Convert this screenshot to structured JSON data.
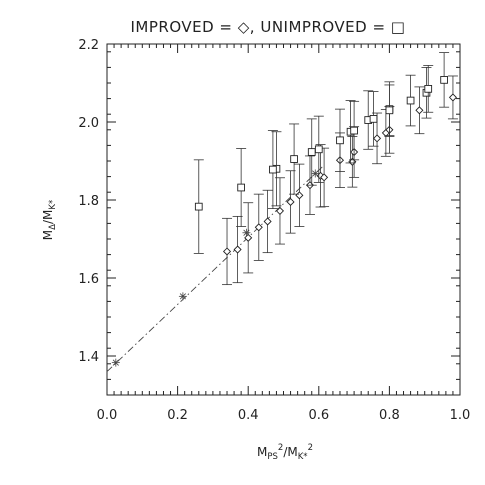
{
  "chart_data": {
    "type": "scatter",
    "title": "IMPROVED = ◇, UNIMPROVED = □",
    "xlabel": {
      "main": "M",
      "sub1": "PS",
      "sup1": "2",
      "slash": "/M",
      "sub2": "K*",
      "sup2": "2"
    },
    "ylabel": {
      "main": "M",
      "sub1": "Δ",
      "slash": "/M",
      "sub2": "K*"
    },
    "xlim": [
      0.0,
      1.0
    ],
    "ylim": [
      1.3,
      2.2
    ],
    "x_ticks": [
      "0.0",
      "0.2",
      "0.4",
      "0.6",
      "0.8",
      "1.0"
    ],
    "y_ticks": [
      "1.4",
      "1.6",
      "1.8",
      "2.0",
      "2.2"
    ],
    "series": [
      {
        "marker": "diamond",
        "points": [
          {
            "x": 0.34,
            "y": 1.668,
            "err": 0.085
          },
          {
            "x": 0.37,
            "y": 1.673,
            "err": 0.085
          },
          {
            "x": 0.4,
            "y": 1.703,
            "err": 0.09
          },
          {
            "x": 0.43,
            "y": 1.73,
            "err": 0.085
          },
          {
            "x": 0.455,
            "y": 1.745,
            "err": 0.08
          },
          {
            "x": 0.49,
            "y": 1.772,
            "err": 0.085
          },
          {
            "x": 0.52,
            "y": 1.795,
            "err": 0.08
          },
          {
            "x": 0.545,
            "y": 1.812,
            "err": 0.08
          },
          {
            "x": 0.575,
            "y": 1.838,
            "err": 0.075
          },
          {
            "x": 0.605,
            "y": 1.862,
            "err": 0.08
          },
          {
            "x": 0.615,
            "y": 1.858,
            "err": 0.075
          },
          {
            "x": 0.66,
            "y": 1.902,
            "err": 0.07
          },
          {
            "x": 0.695,
            "y": 1.898,
            "err": 0.065
          },
          {
            "x": 0.7,
            "y": 1.923,
            "err": 0.065
          },
          {
            "x": 0.765,
            "y": 1.958,
            "err": 0.065
          },
          {
            "x": 0.79,
            "y": 1.972,
            "err": 0.06
          },
          {
            "x": 0.8,
            "y": 1.98,
            "err": 0.06
          },
          {
            "x": 0.885,
            "y": 2.03,
            "err": 0.06
          },
          {
            "x": 0.98,
            "y": 2.063,
            "err": 0.055
          }
        ]
      },
      {
        "marker": "square",
        "points": [
          {
            "x": 0.26,
            "y": 1.783,
            "err": 0.12
          },
          {
            "x": 0.38,
            "y": 1.832,
            "err": 0.1
          },
          {
            "x": 0.48,
            "y": 1.88,
            "err": 0.095
          },
          {
            "x": 0.47,
            "y": 1.878,
            "err": 0.1
          },
          {
            "x": 0.53,
            "y": 1.905,
            "err": 0.09
          },
          {
            "x": 0.58,
            "y": 1.923,
            "err": 0.085
          },
          {
            "x": 0.6,
            "y": 1.93,
            "err": 0.085
          },
          {
            "x": 0.66,
            "y": 1.953,
            "err": 0.08
          },
          {
            "x": 0.69,
            "y": 1.975,
            "err": 0.08
          },
          {
            "x": 0.7,
            "y": 1.978,
            "err": 0.075
          },
          {
            "x": 0.74,
            "y": 2.005,
            "err": 0.075
          },
          {
            "x": 0.755,
            "y": 2.008,
            "err": 0.07
          },
          {
            "x": 0.8,
            "y": 2.033,
            "err": 0.07
          },
          {
            "x": 0.8,
            "y": 2.03,
            "err": 0.065
          },
          {
            "x": 0.86,
            "y": 2.055,
            "err": 0.065
          },
          {
            "x": 0.905,
            "y": 2.075,
            "err": 0.065
          },
          {
            "x": 0.91,
            "y": 2.085,
            "err": 0.06
          },
          {
            "x": 0.955,
            "y": 2.108,
            "err": 0.07
          }
        ]
      },
      {
        "marker": "star",
        "points": [
          {
            "x": 0.025,
            "y": 1.383
          },
          {
            "x": 0.215,
            "y": 1.553
          },
          {
            "x": 0.395,
            "y": 1.716
          },
          {
            "x": 0.59,
            "y": 1.868
          }
        ]
      }
    ],
    "fit_line": {
      "style": "dash-dot",
      "points": [
        {
          "x": 0.0,
          "y": 1.36
        },
        {
          "x": 0.61,
          "y": 1.885
        }
      ]
    }
  }
}
